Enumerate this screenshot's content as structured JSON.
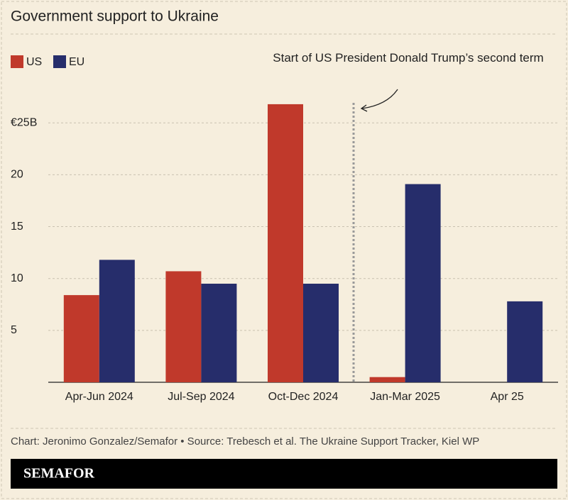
{
  "chart_data": {
    "type": "bar",
    "title": "Government support to Ukraine",
    "categories": [
      "Apr-Jun 2024",
      "Jul-Sep 2024",
      "Oct-Dec 2024",
      "Jan-Mar 2025",
      "Apr 25"
    ],
    "series": [
      {
        "name": "US",
        "color": "#c0392b",
        "values": [
          8.4,
          10.7,
          26.8,
          0.5,
          null
        ]
      },
      {
        "name": "EU",
        "color": "#262d6b",
        "values": [
          11.8,
          9.5,
          9.5,
          19.1,
          7.8
        ]
      }
    ],
    "ylim": [
      0,
      27
    ],
    "yticks": [
      5,
      10,
      15,
      20,
      {
        "value": 25,
        "label": "€25B"
      }
    ],
    "grid": true,
    "legend": "top-left",
    "annotation": "Start of US President Donald Trump’s second term"
  },
  "footer": {
    "source": "Chart: Jeronimo Gonzalez/Semafor • Source: Trebesch et al. The Ukraine Support Tracker, Kiel WP",
    "logo": "SEMAFOR"
  }
}
